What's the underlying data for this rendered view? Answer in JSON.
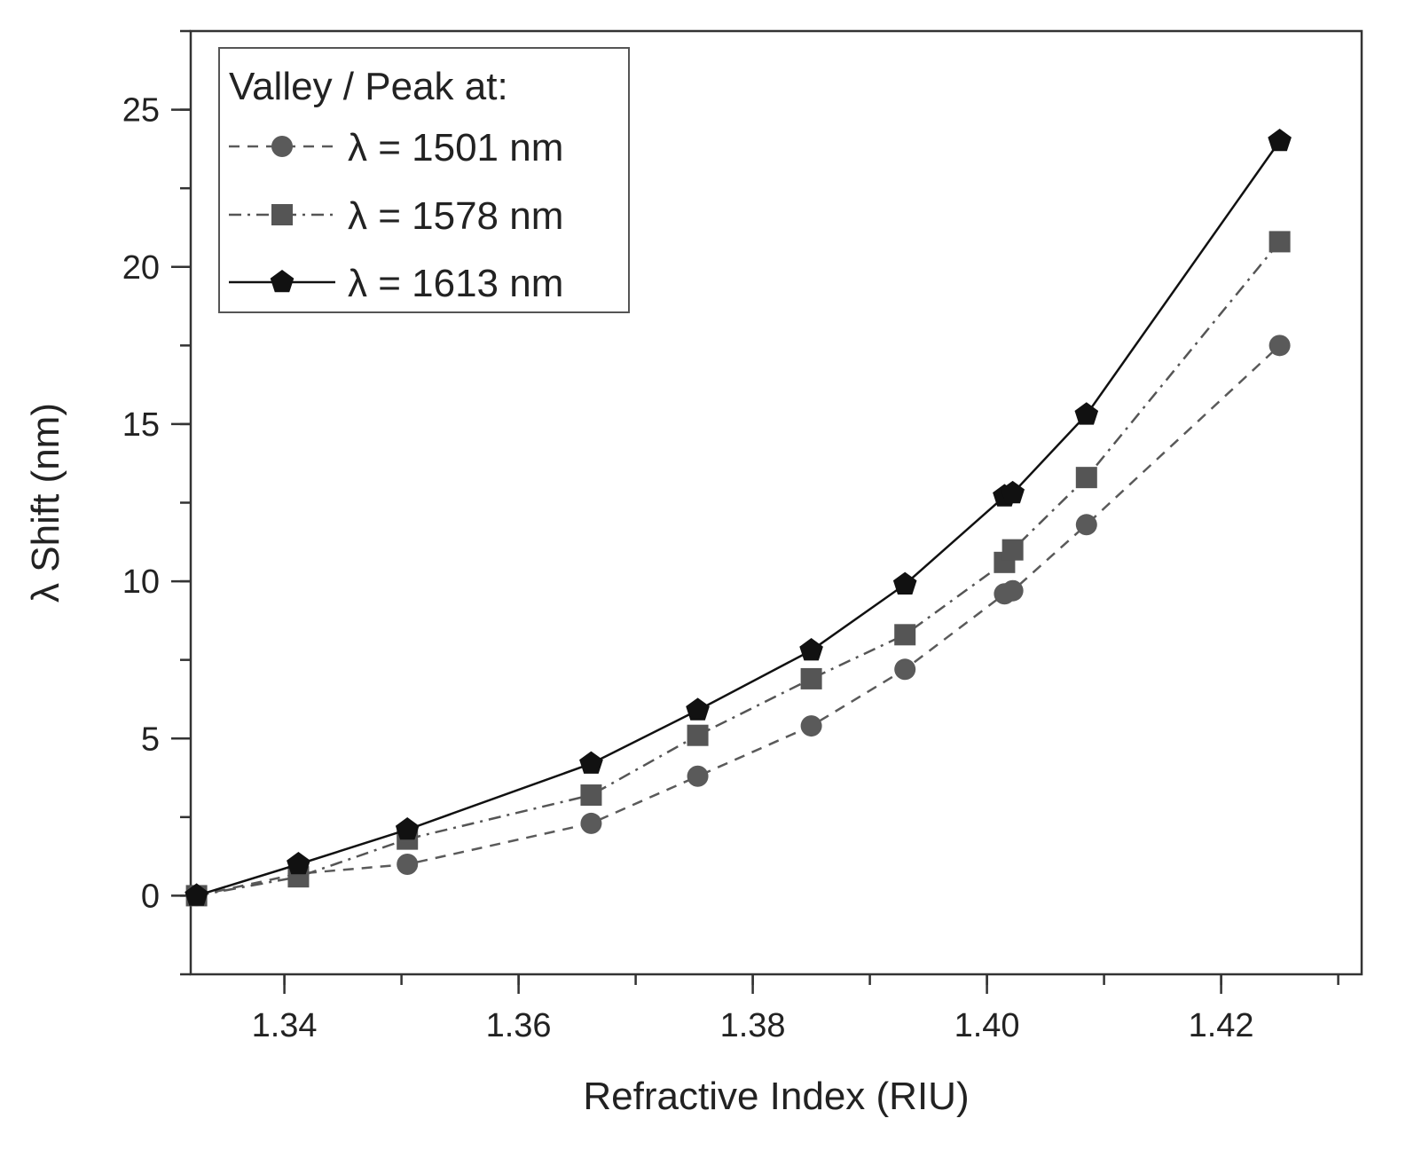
{
  "chart_data": {
    "type": "line",
    "title": "",
    "xlabel": "Refractive Index (RIU)",
    "ylabel": "λ Shift (nm)",
    "xlim": [
      1.332,
      1.432
    ],
    "ylim": [
      -2.5,
      27.5
    ],
    "x_ticks": [
      1.34,
      1.36,
      1.38,
      1.4,
      1.42
    ],
    "x_tick_labels": [
      "1.34",
      "1.36",
      "1.38",
      "1.40",
      "1.42"
    ],
    "y_ticks": [
      0,
      5,
      10,
      15,
      20,
      25
    ],
    "y_tick_labels": [
      "0",
      "5",
      "10",
      "15",
      "20",
      "25"
    ],
    "grid": false,
    "legend": {
      "title": "Valley / Peak at:",
      "position": "top-left"
    },
    "series": [
      {
        "name": "λ = 1501 nm",
        "marker": "circle",
        "line_style": "dashed",
        "color": "#5a5a5a",
        "x": [
          1.3325,
          1.3412,
          1.3505,
          1.3662,
          1.3753,
          1.385,
          1.393,
          1.4015,
          1.4022,
          1.4085,
          1.425
        ],
        "values": [
          0.0,
          0.7,
          1.0,
          2.3,
          3.8,
          5.4,
          7.2,
          9.6,
          9.7,
          11.8,
          17.5
        ]
      },
      {
        "name": "λ = 1578 nm",
        "marker": "square",
        "line_style": "dash-dot",
        "color": "#555555",
        "x": [
          1.3325,
          1.3412,
          1.3505,
          1.3662,
          1.3753,
          1.385,
          1.393,
          1.4015,
          1.4022,
          1.4085,
          1.425
        ],
        "values": [
          0.0,
          0.6,
          1.8,
          3.2,
          5.1,
          6.9,
          8.3,
          10.6,
          11.0,
          13.3,
          20.8
        ]
      },
      {
        "name": "λ = 1613 nm",
        "marker": "pentagon",
        "line_style": "solid",
        "color": "#111111",
        "x": [
          1.3325,
          1.3412,
          1.3505,
          1.3662,
          1.3753,
          1.385,
          1.393,
          1.4015,
          1.4022,
          1.4085,
          1.425
        ],
        "values": [
          0.0,
          1.0,
          2.1,
          4.2,
          5.9,
          7.8,
          9.9,
          12.7,
          12.8,
          15.3,
          24.0
        ]
      }
    ]
  }
}
